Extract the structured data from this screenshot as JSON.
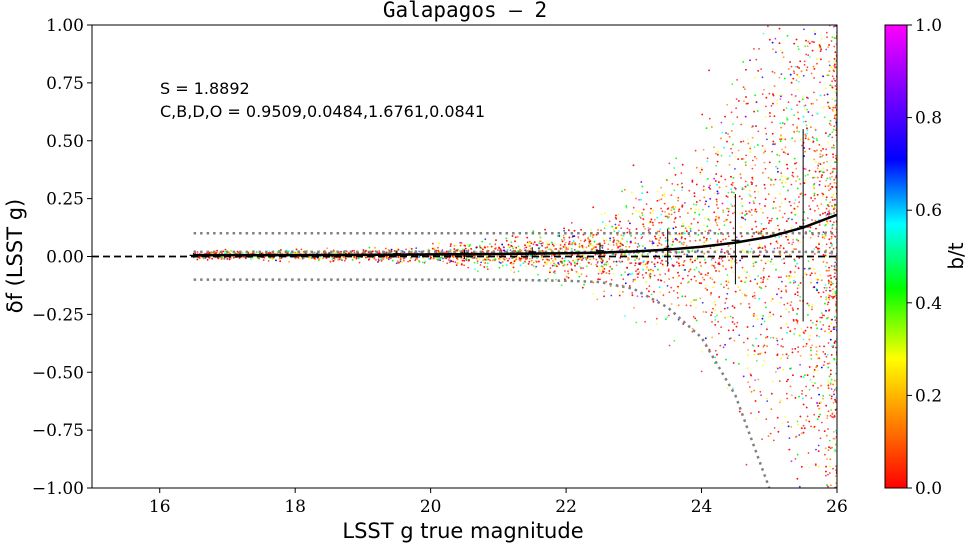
{
  "chart_data": {
    "type": "scatter",
    "title": "Galapagos – 2",
    "xlabel": "LSST g true magnitude",
    "ylabel": "δf (LSST g)",
    "xlim": [
      15,
      26
    ],
    "ylim": [
      -1.0,
      1.0
    ],
    "x_ticks": [
      "16",
      "18",
      "20",
      "22",
      "24",
      "26"
    ],
    "y_ticks": [
      "−1.00",
      "−0.75",
      "−0.50",
      "−0.25",
      "0.00",
      "0.25",
      "0.50",
      "0.75",
      "1.00"
    ],
    "annotations": [
      "S = 1.8892",
      "C,B,D,O = 0.9509,0.0484,1.6761,0.0841"
    ],
    "colorbar": {
      "label": "b/t",
      "range": [
        0.0,
        1.0
      ],
      "ticks": [
        "0.0",
        "0.2",
        "0.4",
        "0.6",
        "0.8",
        "1.0"
      ],
      "colors": [
        "#ff0000",
        "#ff8000",
        "#ffff00",
        "#00ff00",
        "#00ffff",
        "#0000ff",
        "#8000ff",
        "#ff00ff"
      ]
    },
    "reference_line": {
      "y": 0.0,
      "style": "dashed",
      "color": "#000000"
    },
    "binned_median": {
      "x": [
        16.5,
        17.5,
        18.5,
        19.5,
        20.5,
        21.5,
        22.5,
        23.5,
        24.5,
        25.5
      ],
      "y": [
        0.005,
        0.007,
        0.009,
        0.012,
        0.015,
        0.02,
        0.025,
        0.035,
        0.07,
        0.13
      ],
      "err_low": [
        -0.005,
        -0.005,
        -0.005,
        -0.005,
        -0.01,
        -0.01,
        -0.01,
        -0.04,
        -0.12,
        -0.28
      ],
      "err_high": [
        0.015,
        0.015,
        0.02,
        0.025,
        0.03,
        0.04,
        0.06,
        0.12,
        0.27,
        0.55
      ]
    },
    "fit_curve": {
      "x": [
        16.5,
        18,
        19,
        20,
        21,
        22,
        22.5,
        23,
        23.5,
        24,
        24.5,
        25,
        25.5,
        26
      ],
      "y": [
        0.005,
        0.006,
        0.007,
        0.009,
        0.011,
        0.014,
        0.017,
        0.022,
        0.03,
        0.042,
        0.06,
        0.085,
        0.125,
        0.18
      ]
    },
    "upper_envelope": {
      "x": [
        16.5,
        18,
        20,
        22,
        23,
        24,
        25,
        26
      ],
      "y": [
        0.1,
        0.1,
        0.1,
        0.1,
        0.1,
        0.1,
        0.1,
        0.1
      ]
    },
    "inner_envelope": {
      "x": [
        16.5,
        20,
        22,
        23,
        24,
        25,
        26
      ],
      "y": [
        0.02,
        0.02,
        0.02,
        0.02,
        0.02,
        0.02,
        0.02
      ]
    },
    "lower_envelope": {
      "x": [
        16.5,
        18,
        20,
        21,
        22,
        22.5,
        23,
        23.5,
        24,
        24.5,
        25
      ],
      "y": [
        -0.1,
        -0.1,
        -0.1,
        -0.1,
        -0.105,
        -0.11,
        -0.14,
        -0.22,
        -0.35,
        -0.6,
        -1.0
      ]
    }
  }
}
